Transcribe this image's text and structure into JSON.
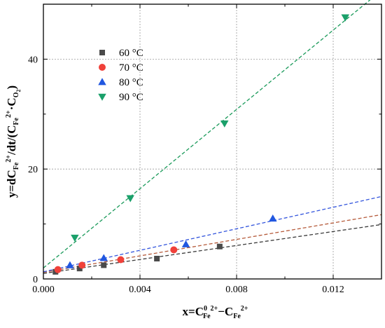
{
  "chart_data": {
    "type": "scatter",
    "x_axis": {
      "range": [
        0,
        0.014
      ],
      "ticks": [
        0.0,
        0.004,
        0.008,
        0.012
      ],
      "tick_labels": [
        "0.000",
        "0.004",
        "0.008",
        "0.012"
      ],
      "label": {
        "prefix": "x=C",
        "sup1": "0",
        "sub1": "Fe",
        "sup2": "2+",
        "mid": "−C",
        "sub3": "Fe",
        "sup3": "2+"
      }
    },
    "y_axis": {
      "range": [
        0,
        50
      ],
      "ticks": [
        0,
        20,
        40
      ],
      "tick_labels": [
        "0",
        "20",
        "40"
      ],
      "label": {
        "prefix": "y=dC",
        "sub1": "Fe",
        "sup1": "2+",
        "mid1": "/dt/(C",
        "sub2": "Fe",
        "sup2": "2+",
        "mid2": "·C",
        "sub3": "O",
        "sub3b": "2",
        "suffix": ")"
      }
    },
    "grid": true,
    "legend_position": "upper-left",
    "series": [
      {
        "name": "60 °C",
        "marker": "square",
        "color": "#4a4a4a",
        "line_color": "#3a3a3a",
        "x": [
          0.0005,
          0.0015,
          0.0025,
          0.0047,
          0.0073
        ],
        "y": [
          1.3,
          1.9,
          2.5,
          3.7,
          5.9
        ],
        "fit": {
          "x0": 0,
          "y0": 1.0,
          "x1": 0.014,
          "y1": 9.9
        }
      },
      {
        "name": "70 °C",
        "marker": "circle",
        "color": "#f0413a",
        "line_color": "#b55a3a",
        "x": [
          0.0006,
          0.0016,
          0.0032,
          0.0054
        ],
        "y": [
          1.7,
          2.5,
          3.5,
          5.3
        ],
        "fit": {
          "x0": 0,
          "y0": 1.2,
          "x1": 0.014,
          "y1": 11.7
        }
      },
      {
        "name": "80 °C",
        "marker": "triangle-up",
        "color": "#2157e0",
        "line_color": "#3355dd",
        "x": [
          0.0011,
          0.0025,
          0.0059,
          0.0095
        ],
        "y": [
          2.5,
          3.8,
          6.3,
          11.0
        ],
        "fit": {
          "x0": 0,
          "y0": 1.3,
          "x1": 0.014,
          "y1": 15.0
        }
      },
      {
        "name": "90 °C",
        "marker": "triangle-down",
        "color": "#1aa06a",
        "line_color": "#1a9a5a",
        "x": [
          0.0013,
          0.0036,
          0.0075,
          0.0125
        ],
        "y": [
          7.5,
          14.7,
          28.3,
          47.6
        ],
        "fit": {
          "x0": 0,
          "y0": 2.0,
          "x1": 0.014,
          "y1": 52.5
        }
      }
    ]
  }
}
